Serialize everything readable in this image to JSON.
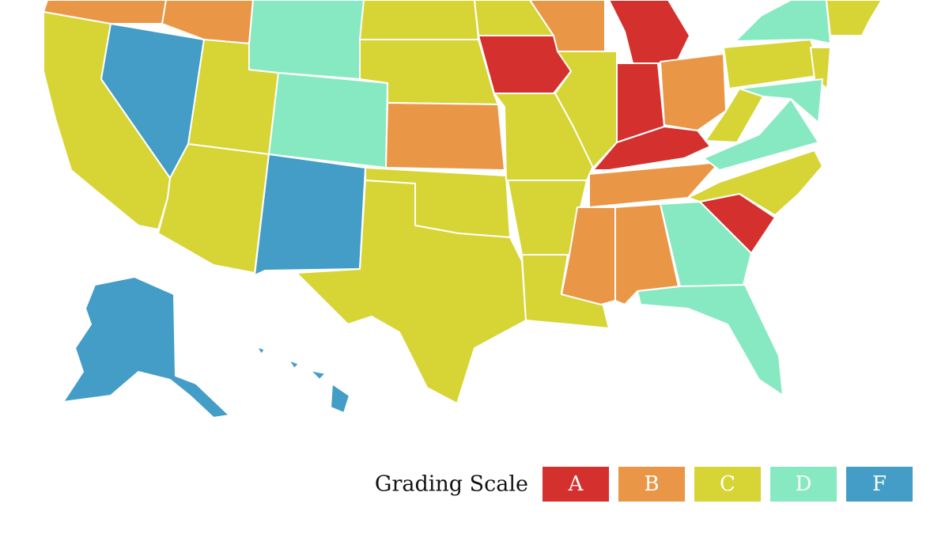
{
  "legend": {
    "title": "Grading Scale",
    "items": [
      {
        "label": "A",
        "color": "#d4302d"
      },
      {
        "label": "B",
        "color": "#ea9647"
      },
      {
        "label": "C",
        "color": "#d7d435"
      },
      {
        "label": "D",
        "color": "#86e9c1"
      },
      {
        "label": "F",
        "color": "#439dc6"
      }
    ]
  }
}
